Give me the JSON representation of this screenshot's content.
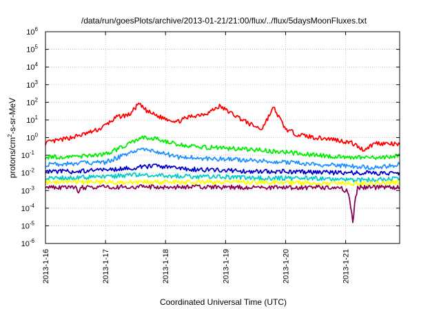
{
  "chart_data": {
    "type": "line",
    "title": "/data/run/goesPlots/archive/2013-01-21/21:00/flux/../flux/5daysMoonFluxes.txt",
    "xlabel": "Coordinated Universal Time (UTC)",
    "ylabel_parts": {
      "pre": "protons/cm",
      "sup": "2",
      "post": "-s-sr-MeV"
    },
    "yscale": "log",
    "ylim_exp": [
      -6,
      6
    ],
    "y_ticks": [
      {
        "base": "10",
        "exp": "6",
        "v": 6
      },
      {
        "base": "10",
        "exp": "5",
        "v": 5
      },
      {
        "base": "10",
        "exp": "4",
        "v": 4
      },
      {
        "base": "10",
        "exp": "3",
        "v": 3
      },
      {
        "base": "10",
        "exp": "2",
        "v": 2
      },
      {
        "base": "10",
        "exp": "1",
        "v": 1
      },
      {
        "base": "10",
        "exp": "0",
        "v": 0
      },
      {
        "base": "10",
        "exp": "-1",
        "v": -1
      },
      {
        "base": "10",
        "exp": "-2",
        "v": -2
      },
      {
        "base": "10",
        "exp": "-3",
        "v": -3
      },
      {
        "base": "10",
        "exp": "-4",
        "v": -4
      },
      {
        "base": "10",
        "exp": "-5",
        "v": -5
      },
      {
        "base": "10",
        "exp": "-6",
        "v": -6
      }
    ],
    "x_ticks": [
      "2013-1-16",
      "2013-1-17",
      "2013-1-18",
      "2013-1-19",
      "2013-1-20",
      "2013-1-21"
    ],
    "xlim_days": [
      0,
      5.9
    ],
    "grid": true,
    "series": [
      {
        "color": "#ff0000",
        "points": [
          [
            0,
            0.5
          ],
          [
            0.3,
            0.8
          ],
          [
            0.6,
            1.4
          ],
          [
            0.9,
            3.0
          ],
          [
            1.2,
            15
          ],
          [
            1.4,
            20
          ],
          [
            1.55,
            80
          ],
          [
            1.7,
            30
          ],
          [
            1.9,
            15
          ],
          [
            2.2,
            8
          ],
          [
            2.4,
            15
          ],
          [
            2.7,
            25
          ],
          [
            2.9,
            60
          ],
          [
            3.2,
            15
          ],
          [
            3.4,
            6
          ],
          [
            3.6,
            3
          ],
          [
            3.8,
            50
          ],
          [
            4.0,
            3
          ],
          [
            4.2,
            1.5
          ],
          [
            4.5,
            1.0
          ],
          [
            4.8,
            0.8
          ],
          [
            5.1,
            0.5
          ],
          [
            5.3,
            0.2
          ],
          [
            5.5,
            0.5
          ],
          [
            5.9,
            0.4
          ]
        ]
      },
      {
        "color": "#00ee00",
        "points": [
          [
            0,
            0.08
          ],
          [
            0.5,
            0.08
          ],
          [
            1.0,
            0.12
          ],
          [
            1.3,
            0.3
          ],
          [
            1.6,
            1.0
          ],
          [
            1.9,
            0.8
          ],
          [
            2.2,
            0.4
          ],
          [
            2.5,
            0.3
          ],
          [
            3.0,
            0.25
          ],
          [
            3.5,
            0.2
          ],
          [
            4.0,
            0.15
          ],
          [
            4.5,
            0.1
          ],
          [
            5.0,
            0.08
          ],
          [
            5.5,
            0.07
          ],
          [
            5.9,
            0.09
          ]
        ]
      },
      {
        "color": "#1e90ff",
        "points": [
          [
            0,
            0.03
          ],
          [
            0.5,
            0.035
          ],
          [
            1.0,
            0.04
          ],
          [
            1.3,
            0.1
          ],
          [
            1.6,
            0.2
          ],
          [
            1.9,
            0.15
          ],
          [
            2.2,
            0.08
          ],
          [
            2.5,
            0.07
          ],
          [
            3.0,
            0.06
          ],
          [
            3.5,
            0.05
          ],
          [
            4.0,
            0.04
          ],
          [
            4.5,
            0.03
          ],
          [
            5.0,
            0.025
          ],
          [
            5.5,
            0.02
          ],
          [
            5.9,
            0.03
          ]
        ]
      },
      {
        "color": "#0000cc",
        "points": [
          [
            0,
            0.012
          ],
          [
            0.5,
            0.012
          ],
          [
            1.0,
            0.015
          ],
          [
            1.5,
            0.02
          ],
          [
            1.8,
            0.025
          ],
          [
            2.2,
            0.018
          ],
          [
            2.6,
            0.015
          ],
          [
            3.0,
            0.014
          ],
          [
            3.5,
            0.012
          ],
          [
            4.0,
            0.012
          ],
          [
            4.5,
            0.011
          ],
          [
            5.0,
            0.01
          ],
          [
            5.5,
            0.01
          ],
          [
            5.9,
            0.01
          ]
        ]
      },
      {
        "color": "#00cccc",
        "points": [
          [
            0,
            0.005
          ],
          [
            1.0,
            0.006
          ],
          [
            1.5,
            0.008
          ],
          [
            2.0,
            0.007
          ],
          [
            2.5,
            0.006
          ],
          [
            3.0,
            0.006
          ],
          [
            3.5,
            0.005
          ],
          [
            4.0,
            0.005
          ],
          [
            4.5,
            0.005
          ],
          [
            5.0,
            0.004
          ],
          [
            5.5,
            0.004
          ],
          [
            5.9,
            0.005
          ]
        ]
      },
      {
        "color": "#ffff00",
        "points": [
          [
            0,
            0.003
          ],
          [
            1.0,
            0.003
          ],
          [
            2.0,
            0.003
          ],
          [
            3.0,
            0.003
          ],
          [
            4.0,
            0.0028
          ],
          [
            5.0,
            0.0025
          ],
          [
            5.9,
            0.0028
          ]
        ]
      },
      {
        "color": "#880055",
        "points": [
          [
            0,
            0.0015
          ],
          [
            0.5,
            0.0015
          ],
          [
            0.55,
            0.0006
          ],
          [
            0.6,
            0.0015
          ],
          [
            1.0,
            0.0016
          ],
          [
            2.0,
            0.0016
          ],
          [
            3.0,
            0.0015
          ],
          [
            4.0,
            0.0015
          ],
          [
            4.9,
            0.0015
          ],
          [
            5.05,
            0.0008
          ],
          [
            5.12,
            1.5e-05
          ],
          [
            5.15,
            0.0002
          ],
          [
            5.2,
            0.0015
          ],
          [
            5.9,
            0.0015
          ]
        ]
      }
    ]
  }
}
